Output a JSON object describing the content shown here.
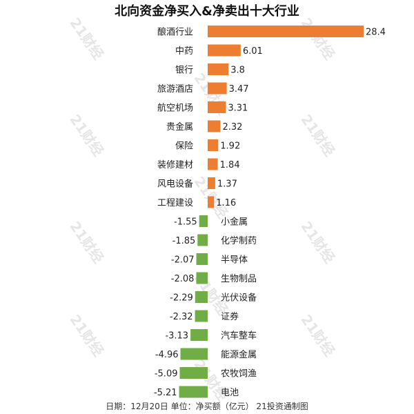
{
  "chart_data": {
    "type": "bar",
    "orientation": "horizontal",
    "title": "北向资金净买入&净卖出十大行业",
    "categories": [
      "酿酒行业",
      "中药",
      "银行",
      "旅游酒店",
      "航空机场",
      "贵金属",
      "保险",
      "装修建材",
      "风电设备",
      "工程建设",
      "小金属",
      "化学制药",
      "半导体",
      "生物制品",
      "光伏设备",
      "证券",
      "汽车整车",
      "能源金属",
      "农牧饲渔",
      "电池"
    ],
    "values": [
      28.4,
      6.01,
      3.8,
      3.47,
      3.31,
      2.32,
      1.92,
      1.84,
      1.37,
      1.16,
      -1.55,
      -1.85,
      -2.07,
      -2.08,
      -2.29,
      -2.32,
      -3.13,
      -4.96,
      -5.09,
      -5.21
    ],
    "value_labels": [
      "28.4",
      "6.01",
      "3.8",
      "3.47",
      "3.31",
      "2.32",
      "1.92",
      "1.84",
      "1.37",
      "1.16",
      "-1.55",
      "-1.85",
      "-2.07",
      "-2.08",
      "-2.29",
      "-2.32",
      "-3.13",
      "-4.96",
      "-5.09",
      "-5.21"
    ],
    "xlim": [
      -5.3,
      28.4
    ],
    "grid": false,
    "legend": "none",
    "colors": {
      "positive": "#ED7D31",
      "negative": "#70AD47"
    }
  },
  "footer": "日期：12月20日 单位：净买额（亿元） 21投资通制图",
  "watermark": "21财经"
}
